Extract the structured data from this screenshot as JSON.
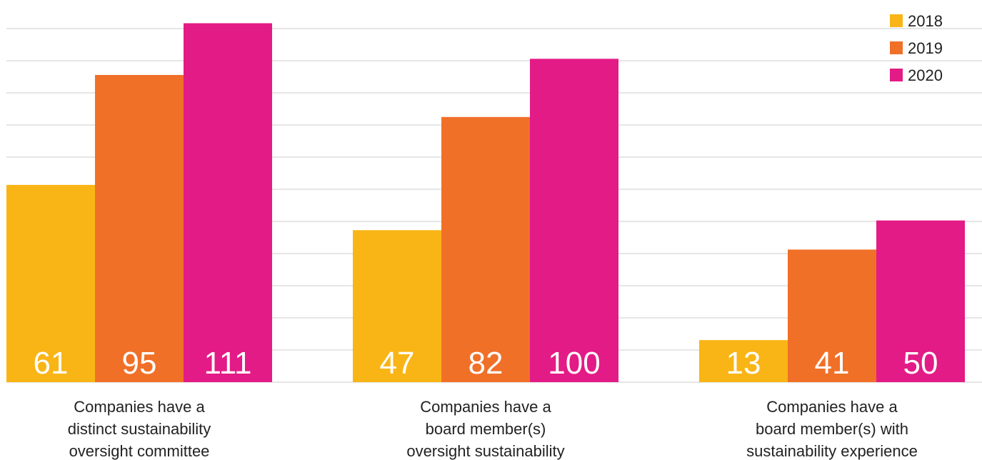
{
  "chart_data": {
    "type": "bar",
    "categories": [
      "Companies have a distinct sustainability oversight committee",
      "Companies have a board member(s) oversight sustainability",
      "Companies have a board member(s) with sustainability experience"
    ],
    "category_label_lines": [
      [
        "Companies have a",
        "distinct sustainability",
        "oversight committee"
      ],
      [
        "Companies have a",
        "board member(s)",
        "oversight sustainability"
      ],
      [
        "Companies have a",
        "board member(s) with",
        "sustainability experience"
      ]
    ],
    "series": [
      {
        "name": "2018",
        "color": "#F9B516",
        "values": [
          61,
          47,
          13
        ]
      },
      {
        "name": "2019",
        "color": "#F07028",
        "values": [
          95,
          82,
          41
        ]
      },
      {
        "name": "2020",
        "color": "#E31B86",
        "values": [
          111,
          100,
          50
        ]
      }
    ],
    "ylim": [
      0,
      112
    ],
    "grid": true,
    "legend_position": "top-right",
    "title": "",
    "xlabel": "",
    "ylabel": ""
  }
}
